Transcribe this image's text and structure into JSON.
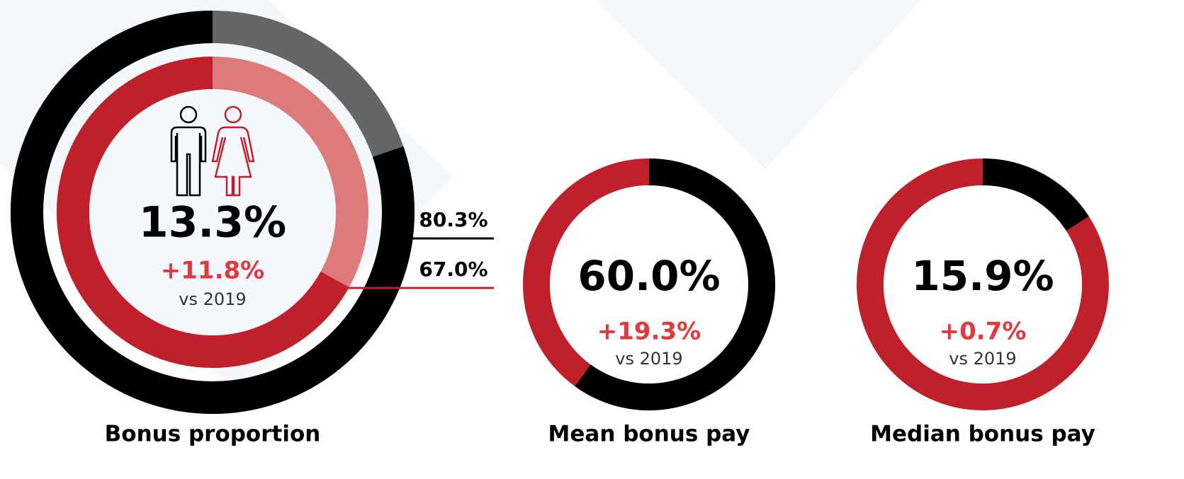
{
  "chart_data": [
    {
      "type": "donut",
      "title": "Bonus proportion",
      "direction": "counterclockwise",
      "headline": "13.3%",
      "change": "+11.8%",
      "comparison": "vs 2019",
      "rings": [
        {
          "value": 80.3,
          "value_label": "80.3%",
          "color": "#000000",
          "rest_color": "#666666"
        },
        {
          "value": 67.0,
          "value_label": "67.0%",
          "color": "#c0202a",
          "rest_color": "#dc7a7c"
        }
      ]
    },
    {
      "type": "donut",
      "title": "Mean bonus pay",
      "direction": "clockwise",
      "change": "+19.3%",
      "comparison": "vs 2019",
      "rings": [
        {
          "value": 60.0,
          "value_label": "60.0%",
          "color": "#000000",
          "rest_color": "#c0202a"
        }
      ]
    },
    {
      "type": "donut",
      "title": "Median bonus pay",
      "direction": "clockwise",
      "change": "+0.7%",
      "comparison": "vs 2019",
      "rings": [
        {
          "value": 15.9,
          "value_label": "15.9%",
          "color": "#000000",
          "rest_color": "#c0202a"
        }
      ]
    }
  ]
}
